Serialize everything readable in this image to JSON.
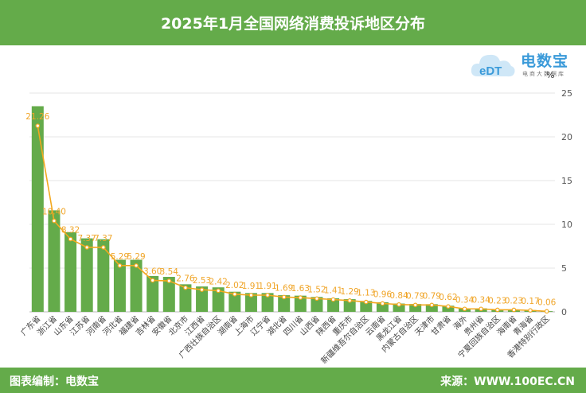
{
  "header": {
    "title": "2025年1月全国网络消费投诉地区分布"
  },
  "footer": {
    "left": "图表编制：电数宝",
    "right": "来源：WWW.100EC.CN"
  },
  "logo": {
    "name": "电数宝",
    "sub": "电商大数据库",
    "cloud_text": "eDT"
  },
  "colors": {
    "bar": "#64ab4a",
    "line": "#f3a81f",
    "header": "#64ab4a",
    "logo": "#3a9ad9"
  },
  "chart_data": {
    "type": "bar",
    "title": "2025年1月全国网络消费投诉地区分布",
    "unit": "%",
    "ylim": [
      0,
      25
    ],
    "yticks": [
      0,
      5,
      10,
      15,
      20,
      25
    ],
    "grid": true,
    "categories": [
      "广东省",
      "浙江省",
      "山东省",
      "江苏省",
      "河南省",
      "河北省",
      "福建省",
      "吉林省",
      "安徽省",
      "北京市",
      "江西省",
      "广西壮族自治区",
      "湖南省",
      "上海市",
      "辽宁省",
      "湖北省",
      "四川省",
      "山西省",
      "陕西省",
      "重庆市",
      "新疆维吾尔自治区",
      "云南省",
      "黑龙江省",
      "内蒙古自治区",
      "天津市",
      "甘肃省",
      "海外",
      "贵州省",
      "宁夏回族自治区",
      "海南省",
      "青海省",
      "香港特别行政区"
    ],
    "values": [
      21.26,
      10.4,
      8.32,
      7.37,
      7.37,
      5.29,
      5.29,
      3.6,
      3.54,
      2.76,
      2.53,
      2.42,
      2.02,
      1.91,
      1.91,
      1.69,
      1.63,
      1.52,
      1.41,
      1.29,
      1.13,
      0.96,
      0.84,
      0.79,
      0.79,
      0.62,
      0.34,
      0.34,
      0.23,
      0.23,
      0.17,
      0.06
    ],
    "bar_heights": [
      23.5,
      11.6,
      9.1,
      8.4,
      8.3,
      5.95,
      5.95,
      4.1,
      4.0,
      3.15,
      2.9,
      2.8,
      2.3,
      2.15,
      2.15,
      1.9,
      1.85,
      1.7,
      1.55,
      1.45,
      1.25,
      1.1,
      0.95,
      0.9,
      0.88,
      0.7,
      0.4,
      0.4,
      0.28,
      0.28,
      0.2,
      0.08
    ],
    "labels": [
      "21.26",
      "10.40",
      "8.32",
      "7.37",
      "7.37",
      "5.29",
      "5.29",
      "3.60",
      "3.54",
      "2.76",
      "2.53",
      "2.42",
      "2.02",
      "1.91",
      "1.91",
      "1.69",
      "1.63",
      "1.52",
      "1.41",
      "1.29",
      "1.13",
      "0.96",
      "0.84",
      "0.79",
      "0.79",
      "0.62",
      "0.34",
      "0.34",
      "0.23",
      "0.23",
      "0.17",
      "0.06"
    ]
  }
}
